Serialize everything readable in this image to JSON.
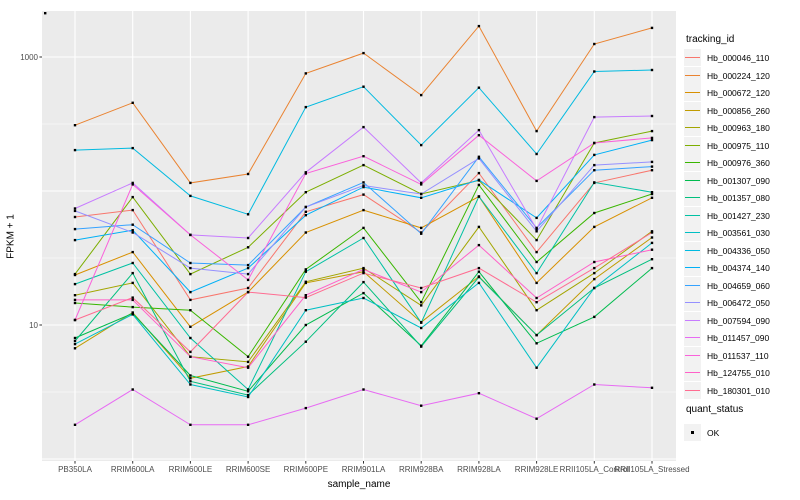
{
  "chart_data": {
    "type": "line",
    "title": "",
    "xlabel": "sample_name",
    "ylabel": "FPKM + 1",
    "x_categories": [
      "PB350LA",
      "RRIM600LA",
      "RRIM600LE",
      "RRIM600SE",
      "RRIM600PE",
      "RRIM901LA",
      "RRIM928BA",
      "RRIM928LA",
      "RRIM928LE",
      "RRII105LA_Control",
      "RRII105LA_Stressed"
    ],
    "y_scale": "log10",
    "y_ticks": [
      {
        "label": "1000",
        "value": 1000
      },
      {
        "label": "10",
        "value": 10
      }
    ],
    "ylim": [
      1.6,
      2200
    ],
    "grid": "on",
    "panel_bg": "#EBEBEB",
    "grid_color": "#FFFFFF",
    "point_color": "#000000",
    "legend_position": "right",
    "legend": {
      "title": "tracking_id"
    },
    "legend2": {
      "title": "quant_status",
      "items": [
        {
          "label": "OK",
          "symbol": "black-square"
        }
      ]
    },
    "series": [
      {
        "name": "Hb_000046_110",
        "color": "#F8766D",
        "values": [
          64,
          72,
          15.4,
          18.9,
          70,
          94,
          49,
          136,
          35,
          115,
          143
        ]
      },
      {
        "name": "Hb_000224_120",
        "color": "#EA8331",
        "values": [
          310,
          455,
          115,
          134,
          755,
          1070,
          520,
          1700,
          280,
          1250,
          1650
        ]
      },
      {
        "name": "Hb_000672_120",
        "color": "#D89000",
        "values": [
          23.6,
          35,
          9.7,
          17.6,
          49,
          72,
          53,
          91,
          20.6,
          54,
          89
        ]
      },
      {
        "name": "Hb_000856_260",
        "color": "#C09B00",
        "values": [
          6.7,
          12.4,
          4.0,
          4.9,
          20.6,
          25,
          10.5,
          23,
          8.4,
          22,
          45
        ]
      },
      {
        "name": "Hb_000963_180",
        "color": "#A3A500",
        "values": [
          16.7,
          20.6,
          5.8,
          5.3,
          21,
          26.6,
          14,
          54,
          12.9,
          24.4,
          50
        ]
      },
      {
        "name": "Hb_000975_110",
        "color": "#7CAE00",
        "values": [
          24,
          90,
          24,
          38,
          98,
          156,
          95,
          120,
          43,
          228,
          280
        ]
      },
      {
        "name": "Hb_000976_360",
        "color": "#39B600",
        "values": [
          14.6,
          13.6,
          12.9,
          5.8,
          26,
          53,
          14.8,
          111,
          29.5,
          68.5,
          95
        ]
      },
      {
        "name": "Hb_001307_090",
        "color": "#00BB4E",
        "values": [
          8.0,
          12.2,
          4.2,
          3.2,
          10,
          17.3,
          7.0,
          25,
          7.3,
          11.5,
          26.6
        ]
      },
      {
        "name": "Hb_001357_080",
        "color": "#00BF7D",
        "values": [
          7.6,
          24.4,
          3.8,
          3.0,
          7.5,
          20.9,
          6.9,
          22.8,
          8.4,
          18.9,
          31
        ]
      },
      {
        "name": "Hb_001427_230",
        "color": "#00C1A3",
        "values": [
          20.2,
          29,
          8.0,
          3.3,
          25,
          44.6,
          10.4,
          91,
          24.4,
          116,
          98
        ]
      },
      {
        "name": "Hb_003561_030",
        "color": "#00BFC4",
        "values": [
          7.2,
          12.0,
          3.6,
          2.9,
          12.9,
          15.9,
          9.5,
          20.6,
          4.8,
          18.9,
          41
        ]
      },
      {
        "name": "Hb_004336_050",
        "color": "#00BAE0",
        "values": [
          202,
          209,
          92,
          67,
          423,
          600,
          220,
          590,
          189,
          780,
          800
        ]
      },
      {
        "name": "Hb_004374_140",
        "color": "#00B0F6",
        "values": [
          43,
          51,
          17.6,
          26.6,
          66,
          107,
          89,
          121,
          63,
          186,
          240
        ]
      },
      {
        "name": "Hb_004659_060",
        "color": "#35A2FF",
        "values": [
          52,
          56,
          29,
          28,
          76,
          116,
          48,
          180,
          53,
          143,
          152
        ]
      },
      {
        "name": "Hb_006472_050",
        "color": "#9590FF",
        "values": [
          71,
          49,
          26.6,
          24,
          76,
          110,
          95,
          175,
          50,
          156,
          165
        ]
      },
      {
        "name": "Hb_007594_090",
        "color": "#C77CFF",
        "values": [
          74,
          115,
          47,
          44.6,
          138,
          300,
          115,
          285,
          52,
          356,
          363
        ]
      },
      {
        "name": "Hb_011457_090",
        "color": "#E76BF3",
        "values": [
          1.8,
          3.3,
          1.8,
          1.8,
          2.4,
          3.3,
          2.5,
          3.1,
          2.0,
          3.6,
          3.4
        ]
      },
      {
        "name": "Hb_011537_110",
        "color": "#FA62DB",
        "values": [
          10.9,
          112,
          47,
          21.7,
          135,
          182,
          112,
          261,
          119,
          228,
          249
        ]
      },
      {
        "name": "Hb_124755_010",
        "color": "#FF61C8",
        "values": [
          15.4,
          15.4,
          5.8,
          4.8,
          16.7,
          26,
          17.6,
          39.5,
          15.9,
          29.5,
          36.5
        ]
      },
      {
        "name": "Hb_180301_010",
        "color": "#FF6C91",
        "values": [
          10.9,
          16,
          6.3,
          17.6,
          16,
          24.4,
          18.9,
          26.6,
          14.8,
          26.6,
          49
        ]
      }
    ]
  }
}
